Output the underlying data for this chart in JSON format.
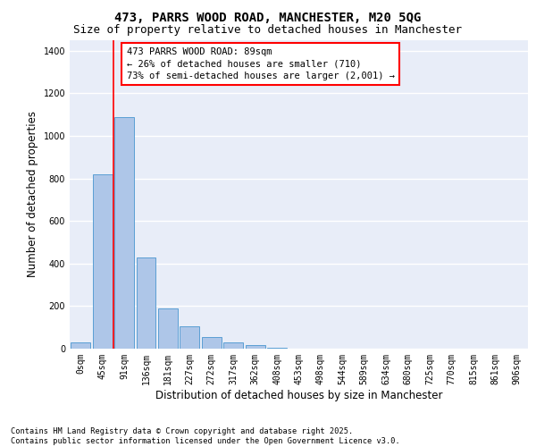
{
  "title_line1": "473, PARRS WOOD ROAD, MANCHESTER, M20 5QG",
  "title_line2": "Size of property relative to detached houses in Manchester",
  "xlabel": "Distribution of detached houses by size in Manchester",
  "ylabel": "Number of detached properties",
  "categories": [
    "0sqm",
    "45sqm",
    "91sqm",
    "136sqm",
    "181sqm",
    "227sqm",
    "272sqm",
    "317sqm",
    "362sqm",
    "408sqm",
    "453sqm",
    "498sqm",
    "544sqm",
    "589sqm",
    "634sqm",
    "680sqm",
    "725sqm",
    "770sqm",
    "815sqm",
    "861sqm",
    "906sqm"
  ],
  "values": [
    30,
    820,
    1090,
    430,
    190,
    105,
    55,
    30,
    18,
    5,
    0,
    0,
    0,
    0,
    0,
    0,
    0,
    0,
    0,
    0,
    0
  ],
  "bar_color": "#aec6e8",
  "bar_edgecolor": "#5a9fd4",
  "annotation_text": "473 PARRS WOOD ROAD: 89sqm\n← 26% of detached houses are smaller (710)\n73% of semi-detached houses are larger (2,001) →",
  "annotation_box_edgecolor": "red",
  "annotation_box_facecolor": "white",
  "vline_x_index": 2,
  "ylim": [
    0,
    1450
  ],
  "yticks": [
    0,
    200,
    400,
    600,
    800,
    1000,
    1200,
    1400
  ],
  "background_color": "#e8edf8",
  "grid_color": "white",
  "footer_text": "Contains HM Land Registry data © Crown copyright and database right 2025.\nContains public sector information licensed under the Open Government Licence v3.0.",
  "title_fontsize": 10,
  "subtitle_fontsize": 9,
  "tick_fontsize": 7,
  "label_fontsize": 8.5,
  "annotation_fontsize": 7.5
}
